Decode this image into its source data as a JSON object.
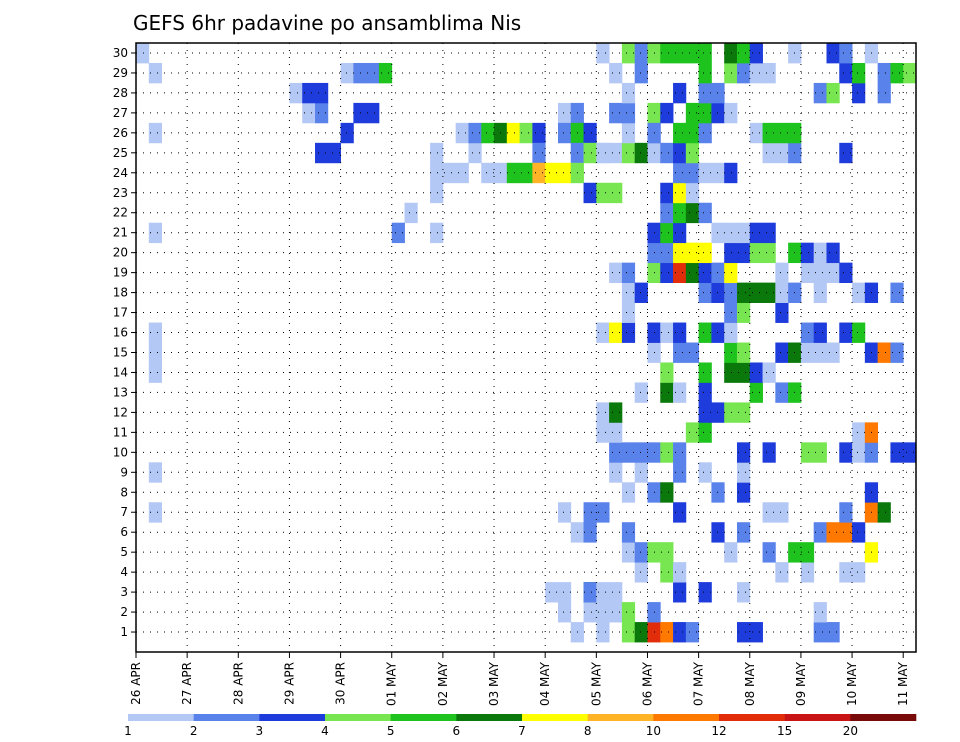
{
  "chart_data": {
    "type": "heatmap",
    "title": "GEFS 6hr padavine po ansamblima Nis",
    "x_tick_labels": [
      "26 APR",
      "27 APR",
      "28 APR",
      "29 APR",
      "30 APR",
      "01 MAY",
      "02 MAY",
      "03 MAY",
      "04 MAY",
      "05 MAY",
      "06 MAY",
      "07 MAY",
      "08 MAY",
      "09 MAY",
      "10 MAY",
      "11 MAY"
    ],
    "x_range": [
      0,
      61
    ],
    "members": [
      1,
      2,
      3,
      4,
      5,
      6,
      7,
      8,
      9,
      10,
      11,
      12,
      13,
      14,
      15,
      16,
      17,
      18,
      19,
      20,
      21,
      22,
      23,
      24,
      25,
      26,
      27,
      28,
      29,
      30
    ],
    "y_tick_labels": [
      "1",
      "2",
      "3",
      "4",
      "5",
      "6",
      "7",
      "8",
      "9",
      "10",
      "11",
      "12",
      "13",
      "14",
      "15",
      "16",
      "17",
      "18",
      "19",
      "20",
      "21",
      "22",
      "23",
      "24",
      "25",
      "26",
      "27",
      "28",
      "29",
      "30"
    ],
    "grid": true,
    "legend_placement": "bottom",
    "colorbar": {
      "labels": [
        "1",
        "2",
        "3",
        "4",
        "5",
        "6",
        "7",
        "8",
        "10",
        "12",
        "15",
        "20"
      ],
      "colors": [
        "#b4c8f5",
        "#5a82eb",
        "#1e3cdc",
        "#78e650",
        "#1ec31e",
        "#0a780a",
        "#ffff00",
        "#ffb428",
        "#ff7800",
        "#e12d0a",
        "#c81414",
        "#780a0a"
      ]
    },
    "cells": [
      [
        1,
        36,
        0
      ],
      [
        1,
        38,
        3
      ],
      [
        1,
        39,
        5
      ],
      [
        1,
        40,
        9
      ],
      [
        1,
        41,
        8
      ],
      [
        1,
        42,
        2
      ],
      [
        1,
        43,
        1
      ],
      [
        1,
        47,
        2
      ],
      [
        1,
        48,
        2
      ],
      [
        1,
        53,
        1
      ],
      [
        1,
        54,
        1
      ],
      [
        1,
        34,
        0
      ],
      [
        2,
        37,
        0
      ],
      [
        2,
        38,
        3
      ],
      [
        2,
        40,
        1
      ],
      [
        2,
        53,
        0
      ],
      [
        2,
        35,
        0
      ],
      [
        2,
        36,
        0
      ],
      [
        2,
        33,
        0
      ],
      [
        3,
        32,
        0
      ],
      [
        3,
        33,
        0
      ],
      [
        3,
        37,
        0
      ],
      [
        3,
        42,
        2
      ],
      [
        3,
        44,
        2
      ],
      [
        3,
        35,
        5
      ],
      [
        3,
        35,
        1
      ],
      [
        3,
        36,
        0
      ],
      [
        3,
        47,
        0
      ],
      [
        4,
        39,
        0
      ],
      [
        4,
        41,
        3
      ],
      [
        4,
        42,
        0
      ],
      [
        4,
        50,
        0
      ],
      [
        4,
        52,
        0
      ],
      [
        4,
        55,
        0
      ],
      [
        4,
        56,
        0
      ],
      [
        5,
        38,
        0
      ],
      [
        5,
        39,
        1
      ],
      [
        5,
        40,
        3
      ],
      [
        5,
        41,
        3
      ],
      [
        5,
        46,
        0
      ],
      [
        5,
        49,
        1
      ],
      [
        5,
        51,
        4
      ],
      [
        5,
        52,
        4
      ],
      [
        5,
        57,
        6
      ],
      [
        6,
        34,
        0
      ],
      [
        6,
        35,
        1
      ],
      [
        6,
        38,
        1
      ],
      [
        6,
        45,
        2
      ],
      [
        6,
        47,
        1
      ],
      [
        6,
        53,
        1
      ],
      [
        6,
        54,
        8
      ],
      [
        6,
        55,
        8
      ],
      [
        6,
        56,
        2
      ],
      [
        7,
        33,
        0
      ],
      [
        7,
        35,
        1
      ],
      [
        7,
        36,
        1
      ],
      [
        7,
        42,
        2
      ],
      [
        7,
        49,
        0
      ],
      [
        7,
        50,
        0
      ],
      [
        7,
        55,
        1
      ],
      [
        7,
        57,
        8
      ],
      [
        7,
        58,
        5
      ],
      [
        8,
        38,
        0
      ],
      [
        8,
        40,
        1
      ],
      [
        8,
        41,
        5
      ],
      [
        8,
        45,
        1
      ],
      [
        8,
        47,
        2
      ],
      [
        8,
        57,
        2
      ],
      [
        9,
        37,
        0
      ],
      [
        9,
        39,
        0
      ],
      [
        9,
        42,
        1
      ],
      [
        9,
        44,
        0
      ],
      [
        9,
        47,
        0
      ],
      [
        10,
        37,
        1
      ],
      [
        10,
        38,
        1
      ],
      [
        10,
        39,
        1
      ],
      [
        10,
        40,
        1
      ],
      [
        10,
        41,
        3
      ],
      [
        10,
        42,
        1
      ],
      [
        10,
        47,
        2
      ],
      [
        10,
        49,
        2
      ],
      [
        10,
        52,
        3
      ],
      [
        10,
        53,
        3
      ],
      [
        10,
        55,
        2
      ],
      [
        10,
        56,
        0
      ],
      [
        10,
        57,
        1
      ],
      [
        10,
        59,
        2
      ],
      [
        10,
        60,
        2
      ],
      [
        11,
        36,
        0
      ],
      [
        11,
        37,
        0
      ],
      [
        11,
        43,
        3
      ],
      [
        11,
        44,
        4
      ],
      [
        11,
        56,
        0
      ],
      [
        11,
        57,
        8
      ],
      [
        12,
        36,
        0
      ],
      [
        12,
        37,
        5
      ],
      [
        12,
        44,
        2
      ],
      [
        12,
        45,
        2
      ],
      [
        12,
        46,
        3
      ],
      [
        12,
        47,
        3
      ],
      [
        13,
        39,
        0
      ],
      [
        13,
        41,
        5
      ],
      [
        13,
        42,
        0
      ],
      [
        13,
        44,
        2
      ],
      [
        13,
        48,
        4
      ],
      [
        13,
        50,
        1
      ],
      [
        13,
        51,
        4
      ],
      [
        14,
        41,
        3
      ],
      [
        14,
        44,
        4
      ],
      [
        14,
        46,
        5
      ],
      [
        14,
        47,
        5
      ],
      [
        14,
        48,
        2
      ],
      [
        14,
        49,
        0
      ],
      [
        15,
        40,
        0
      ],
      [
        15,
        42,
        1
      ],
      [
        15,
        43,
        1
      ],
      [
        15,
        46,
        4
      ],
      [
        15,
        47,
        3
      ],
      [
        15,
        50,
        2
      ],
      [
        15,
        51,
        5
      ],
      [
        15,
        52,
        0
      ],
      [
        15,
        53,
        0
      ],
      [
        15,
        54,
        0
      ],
      [
        15,
        57,
        2
      ],
      [
        15,
        58,
        8
      ],
      [
        15,
        59,
        1
      ],
      [
        16,
        36,
        0
      ],
      [
        16,
        37,
        6
      ],
      [
        16,
        38,
        2
      ],
      [
        16,
        40,
        2
      ],
      [
        16,
        41,
        0
      ],
      [
        16,
        42,
        2
      ],
      [
        16,
        44,
        4
      ],
      [
        16,
        45,
        2
      ],
      [
        16,
        46,
        0
      ],
      [
        16,
        52,
        1
      ],
      [
        16,
        53,
        2
      ],
      [
        16,
        55,
        2
      ],
      [
        16,
        56,
        4
      ],
      [
        17,
        38,
        0
      ],
      [
        17,
        46,
        1
      ],
      [
        17,
        47,
        3
      ],
      [
        17,
        50,
        2
      ],
      [
        18,
        38,
        0
      ],
      [
        18,
        39,
        2
      ],
      [
        18,
        44,
        1
      ],
      [
        18,
        45,
        2
      ],
      [
        18,
        46,
        1
      ],
      [
        18,
        47,
        5
      ],
      [
        18,
        48,
        5
      ],
      [
        18,
        49,
        5
      ],
      [
        18,
        50,
        0
      ],
      [
        18,
        51,
        1
      ],
      [
        18,
        53,
        0
      ],
      [
        18,
        56,
        0
      ],
      [
        18,
        57,
        2
      ],
      [
        18,
        59,
        1
      ],
      [
        19,
        37,
        0
      ],
      [
        19,
        38,
        1
      ],
      [
        19,
        40,
        3
      ],
      [
        19,
        41,
        2
      ],
      [
        19,
        42,
        9
      ],
      [
        19,
        43,
        5
      ],
      [
        19,
        44,
        2
      ],
      [
        19,
        45,
        1
      ],
      [
        19,
        46,
        6
      ],
      [
        19,
        50,
        0
      ],
      [
        19,
        52,
        0
      ],
      [
        19,
        53,
        0
      ],
      [
        19,
        54,
        0
      ],
      [
        19,
        55,
        2
      ],
      [
        20,
        40,
        1
      ],
      [
        20,
        41,
        1
      ],
      [
        20,
        42,
        6
      ],
      [
        20,
        43,
        6
      ],
      [
        20,
        44,
        6
      ],
      [
        20,
        46,
        2
      ],
      [
        20,
        47,
        2
      ],
      [
        20,
        48,
        3
      ],
      [
        20,
        49,
        3
      ],
      [
        20,
        51,
        4
      ],
      [
        20,
        52,
        2
      ],
      [
        20,
        53,
        0
      ],
      [
        20,
        54,
        2
      ],
      [
        21,
        40,
        2
      ],
      [
        21,
        41,
        4
      ],
      [
        21,
        42,
        2
      ],
      [
        21,
        45,
        0
      ],
      [
        21,
        46,
        0
      ],
      [
        21,
        47,
        0
      ],
      [
        21,
        48,
        2
      ],
      [
        21,
        49,
        2
      ],
      [
        22,
        41,
        1
      ],
      [
        22,
        42,
        4
      ],
      [
        22,
        43,
        5
      ],
      [
        22,
        44,
        1
      ],
      [
        23,
        41,
        2
      ],
      [
        23,
        42,
        6
      ],
      [
        23,
        43,
        0
      ],
      [
        24,
        42,
        1
      ],
      [
        24,
        43,
        1
      ],
      [
        24,
        44,
        0
      ],
      [
        24,
        45,
        0
      ],
      [
        24,
        46,
        2
      ],
      [
        25,
        36,
        0
      ],
      [
        25,
        37,
        0
      ],
      [
        25,
        38,
        3
      ],
      [
        25,
        39,
        5
      ],
      [
        25,
        40,
        0
      ],
      [
        25,
        41,
        1
      ],
      [
        25,
        42,
        2
      ],
      [
        25,
        43,
        3
      ],
      [
        25,
        49,
        0
      ],
      [
        25,
        50,
        0
      ],
      [
        25,
        51,
        1
      ],
      [
        25,
        55,
        2
      ],
      [
        26,
        38,
        0
      ],
      [
        26,
        40,
        1
      ],
      [
        26,
        42,
        4
      ],
      [
        26,
        43,
        4
      ],
      [
        26,
        44,
        1
      ],
      [
        26,
        48,
        0
      ],
      [
        26,
        49,
        4
      ],
      [
        26,
        50,
        4
      ],
      [
        26,
        51,
        4
      ],
      [
        27,
        33,
        0
      ],
      [
        27,
        34,
        1
      ],
      [
        27,
        37,
        1
      ],
      [
        27,
        38,
        1
      ],
      [
        27,
        40,
        3
      ],
      [
        27,
        41,
        2
      ],
      [
        27,
        43,
        4
      ],
      [
        27,
        44,
        4
      ],
      [
        27,
        45,
        2
      ],
      [
        27,
        46,
        0
      ],
      [
        28,
        38,
        0
      ],
      [
        28,
        42,
        2
      ],
      [
        28,
        44,
        1
      ],
      [
        28,
        45,
        1
      ],
      [
        28,
        53,
        1
      ],
      [
        28,
        54,
        3
      ],
      [
        28,
        56,
        2
      ],
      [
        28,
        58,
        1
      ],
      [
        29,
        37,
        0
      ],
      [
        29,
        39,
        1
      ],
      [
        29,
        44,
        4
      ],
      [
        29,
        46,
        3
      ],
      [
        29,
        47,
        1
      ],
      [
        29,
        48,
        0
      ],
      [
        29,
        49,
        0
      ],
      [
        29,
        55,
        2
      ],
      [
        29,
        56,
        4
      ],
      [
        29,
        58,
        1
      ],
      [
        29,
        59,
        4
      ],
      [
        29,
        60,
        3
      ],
      [
        30,
        36,
        0
      ],
      [
        30,
        38,
        3
      ],
      [
        30,
        39,
        1
      ],
      [
        30,
        40,
        3
      ],
      [
        30,
        41,
        4
      ],
      [
        30,
        42,
        4
      ],
      [
        30,
        43,
        4
      ],
      [
        30,
        44,
        4
      ],
      [
        30,
        46,
        5
      ],
      [
        30,
        47,
        4
      ],
      [
        30,
        48,
        2
      ],
      [
        30,
        51,
        0
      ],
      [
        30,
        54,
        2
      ],
      [
        30,
        55,
        1
      ],
      [
        30,
        57,
        0
      ],
      [
        30,
        0,
        0
      ],
      [
        29,
        1,
        0
      ],
      [
        26,
        1,
        0
      ],
      [
        21,
        1,
        0
      ],
      [
        15,
        1,
        0
      ],
      [
        14,
        1,
        0
      ],
      [
        16,
        1,
        0
      ],
      [
        9,
        1,
        0
      ],
      [
        7,
        1,
        0
      ],
      [
        25,
        14,
        2
      ],
      [
        25,
        15,
        2
      ],
      [
        26,
        16,
        2
      ],
      [
        27,
        13,
        0
      ],
      [
        27,
        14,
        1
      ],
      [
        27,
        17,
        2
      ],
      [
        27,
        18,
        2
      ],
      [
        29,
        16,
        0
      ],
      [
        29,
        17,
        1
      ],
      [
        29,
        18,
        1
      ],
      [
        29,
        19,
        4
      ],
      [
        28,
        12,
        0
      ],
      [
        28,
        13,
        2
      ],
      [
        28,
        14,
        2
      ],
      [
        25,
        23,
        0
      ],
      [
        24,
        23,
        0
      ],
      [
        23,
        23,
        0
      ],
      [
        22,
        21,
        0
      ],
      [
        21,
        20,
        1
      ],
      [
        21,
        23,
        0
      ],
      [
        25,
        26,
        0
      ],
      [
        26,
        25,
        0
      ],
      [
        26,
        26,
        1
      ],
      [
        26,
        27,
        4
      ],
      [
        26,
        28,
        5
      ],
      [
        26,
        29,
        6
      ],
      [
        26,
        30,
        3
      ],
      [
        26,
        31,
        2
      ],
      [
        26,
        33,
        1
      ],
      [
        26,
        34,
        4
      ],
      [
        26,
        35,
        2
      ],
      [
        25,
        31,
        1
      ],
      [
        25,
        34,
        1
      ],
      [
        25,
        35,
        3
      ],
      [
        25,
        36,
        0
      ],
      [
        24,
        24,
        0
      ],
      [
        24,
        25,
        0
      ],
      [
        26,
        40,
        1
      ],
      [
        24,
        27,
        0
      ],
      [
        24,
        28,
        0
      ],
      [
        24,
        29,
        4
      ],
      [
        24,
        30,
        4
      ],
      [
        24,
        31,
        7
      ],
      [
        24,
        32,
        6
      ],
      [
        24,
        33,
        6
      ],
      [
        24,
        34,
        3
      ],
      [
        23,
        35,
        2
      ],
      [
        23,
        36,
        3
      ],
      [
        23,
        37,
        3
      ]
    ]
  },
  "ui": {}
}
